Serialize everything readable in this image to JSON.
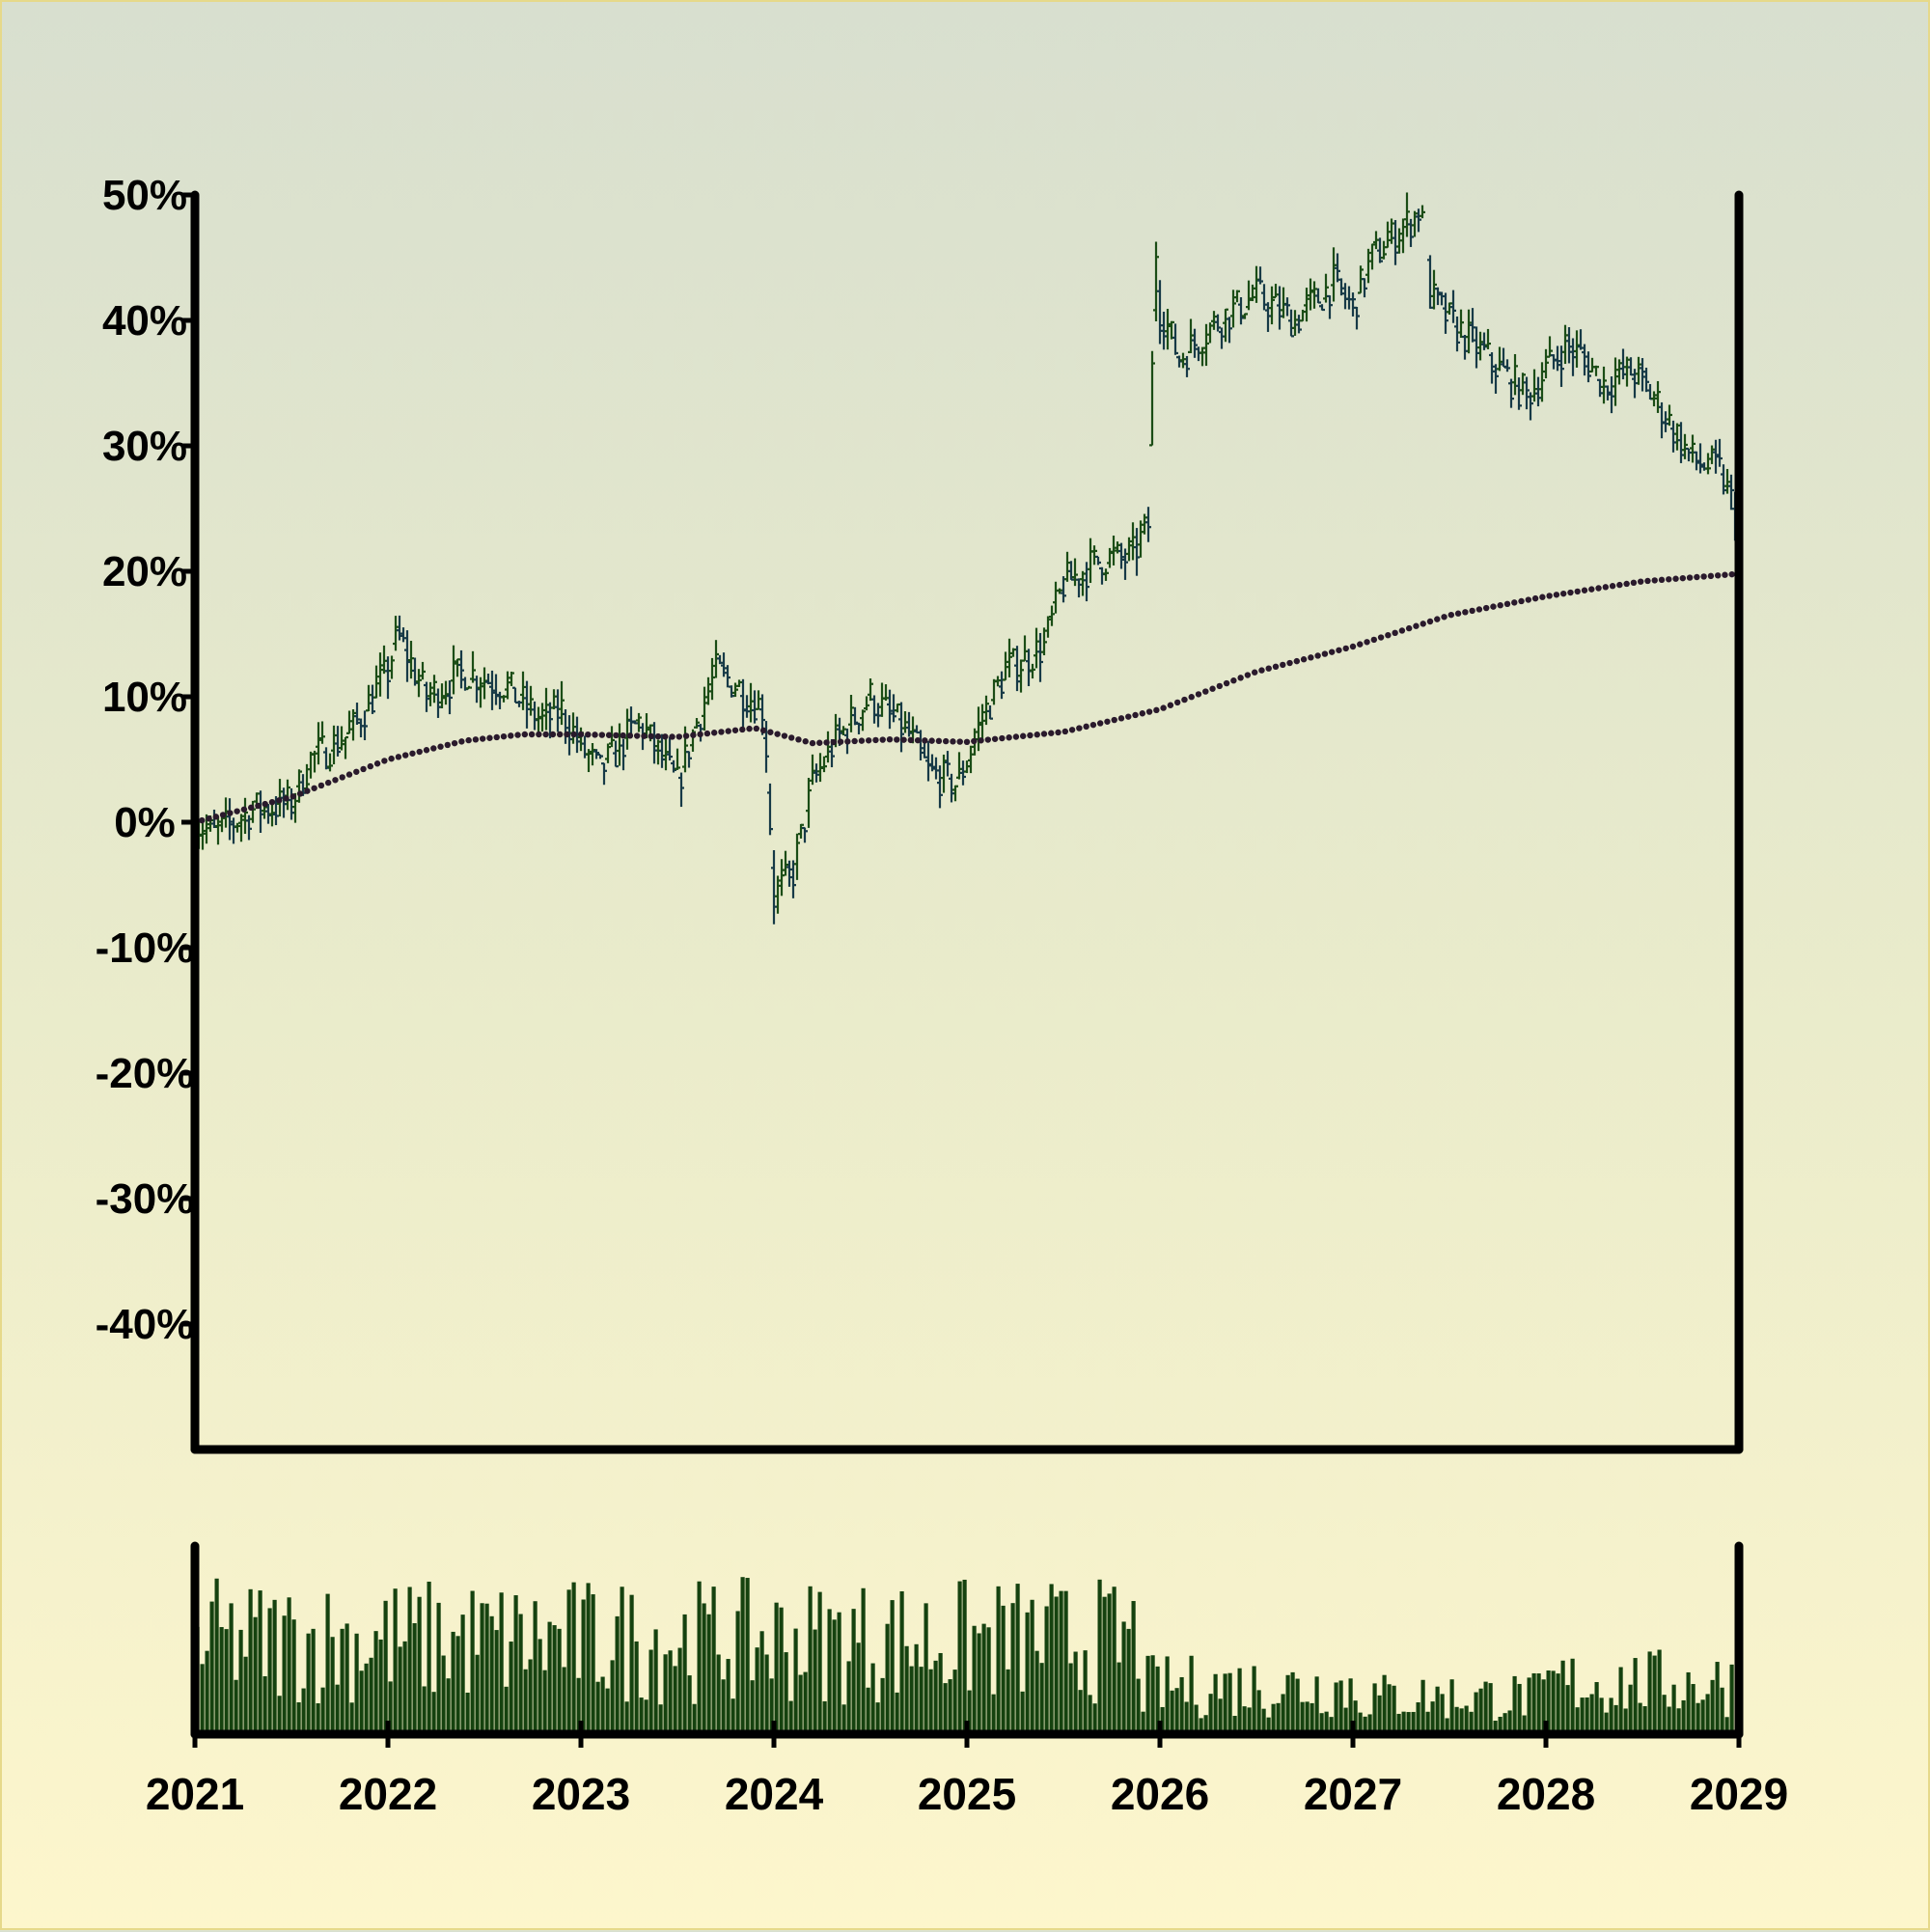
{
  "chart_data": {
    "type": "ohlc",
    "title": "",
    "xlabel": "",
    "ylabel": "",
    "y_ticks": [
      "50%",
      "40%",
      "30%",
      "20%",
      "10%",
      "0%",
      "-10%",
      "-20%",
      "-30%",
      "-40%"
    ],
    "y_tick_values": [
      50,
      40,
      30,
      20,
      10,
      0,
      -10,
      -20,
      -30,
      -40
    ],
    "x_ticks": [
      "2021",
      "2022",
      "2023",
      "2024",
      "2025",
      "2026",
      "2027",
      "2028",
      "2029"
    ],
    "xlim": [
      2021,
      2029
    ],
    "ylim": [
      -50,
      50
    ],
    "grid": false,
    "colors": {
      "bar": "#1b4d16",
      "bar_down": "#173a47",
      "moving_average": "#2a1a2c",
      "volume": "#15420f",
      "axis": "#000000"
    },
    "price_series_name": "",
    "moving_average_series_name": "",
    "price_anchors": [
      [
        2021.0,
        0
      ],
      [
        2021.1,
        -1
      ],
      [
        2021.3,
        1
      ],
      [
        2021.5,
        1.5
      ],
      [
        2021.6,
        5
      ],
      [
        2021.8,
        7
      ],
      [
        2022.0,
        12
      ],
      [
        2022.05,
        15
      ],
      [
        2022.2,
        10
      ],
      [
        2022.4,
        12
      ],
      [
        2022.6,
        11
      ],
      [
        2022.8,
        8
      ],
      [
        2022.9,
        9
      ],
      [
        2023.0,
        6
      ],
      [
        2023.1,
        4
      ],
      [
        2023.3,
        8
      ],
      [
        2023.5,
        3
      ],
      [
        2023.6,
        8
      ],
      [
        2023.7,
        12
      ],
      [
        2023.8,
        11
      ],
      [
        2023.95,
        9
      ],
      [
        2024.0,
        -6
      ],
      [
        2024.1,
        -4
      ],
      [
        2024.2,
        3
      ],
      [
        2024.3,
        6
      ],
      [
        2024.5,
        10
      ],
      [
        2024.7,
        7
      ],
      [
        2024.8,
        4
      ],
      [
        2024.95,
        3
      ],
      [
        2025.1,
        9
      ],
      [
        2025.2,
        12
      ],
      [
        2025.4,
        14
      ],
      [
        2025.5,
        19
      ],
      [
        2025.7,
        21
      ],
      [
        2025.85,
        21
      ],
      [
        2025.95,
        24
      ],
      [
        2025.97,
        48
      ],
      [
        2026.0,
        41
      ],
      [
        2026.1,
        37
      ],
      [
        2026.3,
        40
      ],
      [
        2026.5,
        42
      ],
      [
        2026.7,
        40
      ],
      [
        2026.9,
        43
      ],
      [
        2027.0,
        41
      ],
      [
        2027.1,
        45
      ],
      [
        2027.3,
        48
      ],
      [
        2027.35,
        49
      ],
      [
        2027.4,
        42
      ],
      [
        2027.5,
        40
      ],
      [
        2027.7,
        37
      ],
      [
        2027.9,
        34
      ],
      [
        2028.1,
        38
      ],
      [
        2028.2,
        37
      ],
      [
        2028.3,
        35
      ],
      [
        2028.45,
        36
      ],
      [
        2028.6,
        33
      ],
      [
        2028.75,
        29
      ],
      [
        2028.9,
        28
      ],
      [
        2029.0,
        24
      ]
    ],
    "moving_average_anchors": [
      [
        2021.0,
        0
      ],
      [
        2021.5,
        2
      ],
      [
        2022.0,
        5
      ],
      [
        2022.4,
        6.5
      ],
      [
        2022.7,
        7
      ],
      [
        2023.0,
        7
      ],
      [
        2023.5,
        6.8
      ],
      [
        2023.9,
        7.5
      ],
      [
        2024.2,
        6.3
      ],
      [
        2024.6,
        6.6
      ],
      [
        2025.0,
        6.4
      ],
      [
        2025.5,
        7.2
      ],
      [
        2026.0,
        9
      ],
      [
        2026.5,
        12
      ],
      [
        2027.0,
        14
      ],
      [
        2027.5,
        16.5
      ],
      [
        2028.0,
        18
      ],
      [
        2028.5,
        19.2
      ],
      [
        2029.0,
        19.8
      ]
    ],
    "volume_note": ""
  }
}
